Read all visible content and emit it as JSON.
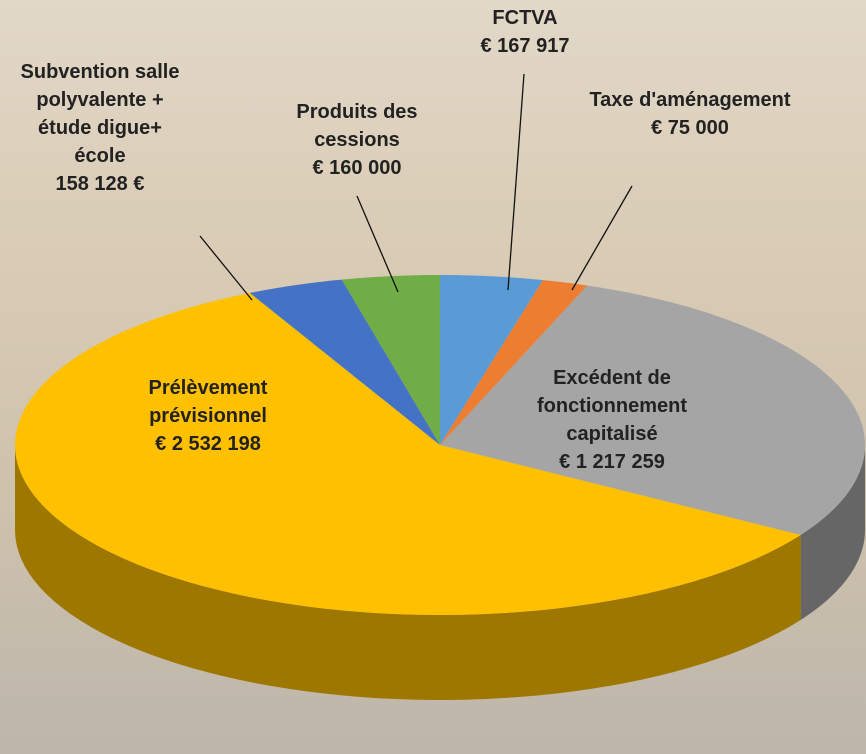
{
  "chart_data": {
    "type": "pie",
    "categories": [
      "FCTVA",
      "Taxe d'aménagement",
      "Excédent de fonctionnement capitalisé",
      "Prélèvement prévisionnel",
      "Subvention salle polyvalente + étude digue+ école",
      "Produits des cessions"
    ],
    "values": [
      167917,
      75000,
      1217259,
      2532198,
      158128,
      160000
    ],
    "value_labels": [
      "€ 167 917",
      "€ 75 000",
      "€ 1 217 259",
      "€ 2 532 198",
      "158 128 €",
      "€ 160 000"
    ],
    "colors": [
      "#5b9bd5",
      "#ed7d31",
      "#a5a5a5",
      "#ffc000",
      "#4472c4",
      "#70ad47"
    ]
  }
}
